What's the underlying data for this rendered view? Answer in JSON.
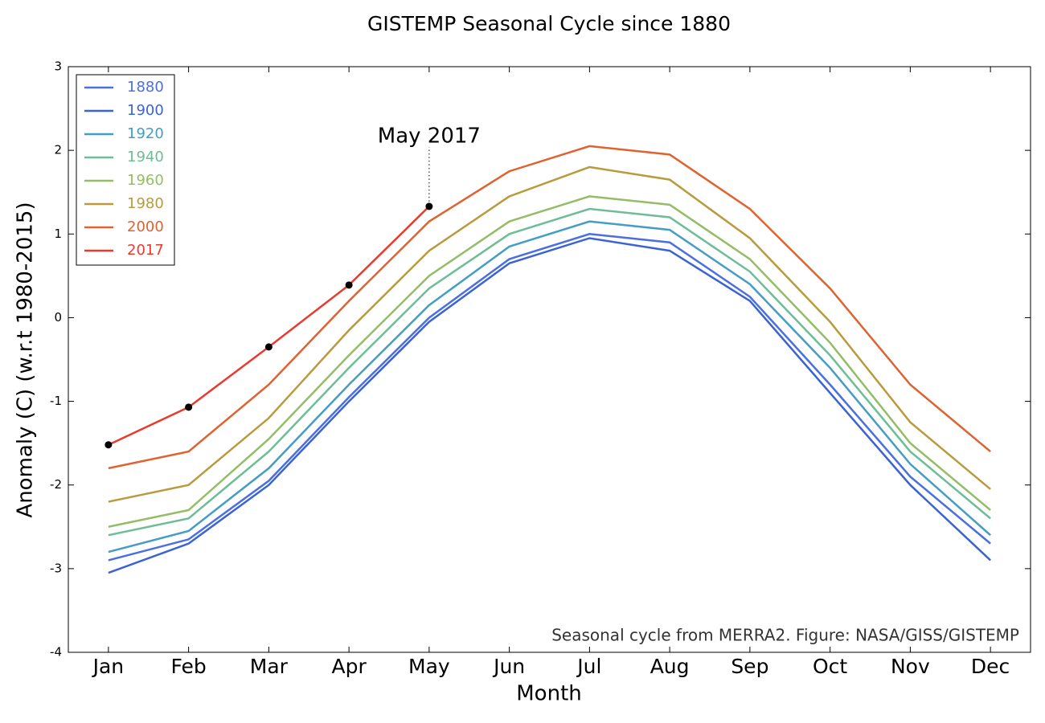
{
  "chart_data": {
    "type": "line",
    "title": "GISTEMP Seasonal Cycle since 1880",
    "x_label": "Month",
    "y_label": "Anomaly (C) (w.r.t 1980-2015)",
    "note": "Seasonal cycle from MERRA2. Figure: NASA/GISS/GISTEMP",
    "categories": [
      "Jan",
      "Feb",
      "Mar",
      "Apr",
      "May",
      "Jun",
      "Jul",
      "Aug",
      "Sep",
      "Oct",
      "Nov",
      "Dec"
    ],
    "ylim": [
      -4,
      3
    ],
    "yticks": [
      -4,
      -3,
      -2,
      -1,
      0,
      1,
      2,
      3
    ],
    "legend": "upper left",
    "annotation": {
      "text": "May 2017",
      "x": "May",
      "series": "2017"
    },
    "series": [
      {
        "name": "1880",
        "color": "#4a6fe3",
        "values": [
          -2.9,
          -2.65,
          -1.95,
          -0.95,
          0.0,
          0.7,
          1.0,
          0.9,
          0.25,
          -0.8,
          -1.9,
          -2.7
        ]
      },
      {
        "name": "1900",
        "color": "#3b63d6",
        "values": [
          -3.05,
          -2.7,
          -2.0,
          -1.0,
          -0.05,
          0.65,
          0.95,
          0.8,
          0.2,
          -0.9,
          -2.0,
          -2.9
        ]
      },
      {
        "name": "1920",
        "color": "#449dc4",
        "values": [
          -2.8,
          -2.55,
          -1.8,
          -0.8,
          0.15,
          0.85,
          1.15,
          1.05,
          0.4,
          -0.6,
          -1.75,
          -2.6
        ]
      },
      {
        "name": "1940",
        "color": "#6dbd96",
        "values": [
          -2.6,
          -2.4,
          -1.6,
          -0.6,
          0.35,
          1.0,
          1.3,
          1.2,
          0.55,
          -0.45,
          -1.6,
          -2.4
        ]
      },
      {
        "name": "1960",
        "color": "#93bd66",
        "values": [
          -2.5,
          -2.3,
          -1.45,
          -0.45,
          0.5,
          1.15,
          1.45,
          1.35,
          0.7,
          -0.3,
          -1.5,
          -2.3
        ]
      },
      {
        "name": "1980",
        "color": "#b99b3d",
        "values": [
          -2.2,
          -2.0,
          -1.2,
          -0.15,
          0.8,
          1.45,
          1.8,
          1.65,
          0.95,
          -0.05,
          -1.25,
          -2.05
        ]
      },
      {
        "name": "2000",
        "color": "#e0622f",
        "values": [
          -1.8,
          -1.6,
          -0.8,
          0.2,
          1.15,
          1.75,
          2.05,
          1.95,
          1.3,
          0.35,
          -0.8,
          -1.6
        ]
      },
      {
        "name": "2017",
        "color": "#ea3a2e",
        "markers": true,
        "values": [
          -1.52,
          -1.07,
          -0.35,
          0.39,
          1.33,
          null,
          null,
          null,
          null,
          null,
          null,
          null
        ]
      }
    ]
  }
}
